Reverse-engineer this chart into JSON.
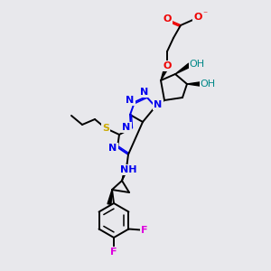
{
  "bg_color": "#e8e8ec",
  "fig_size": [
    3.0,
    3.0
  ],
  "dpi": 100,
  "atom_colors": {
    "N": "#0000ee",
    "O": "#ee0000",
    "S": "#ccaa00",
    "F": "#dd00dd",
    "C": "#000000",
    "OH": "#008888"
  },
  "bond_color": "#000000",
  "bond_width": 1.4,
  "font_size": 8.0
}
